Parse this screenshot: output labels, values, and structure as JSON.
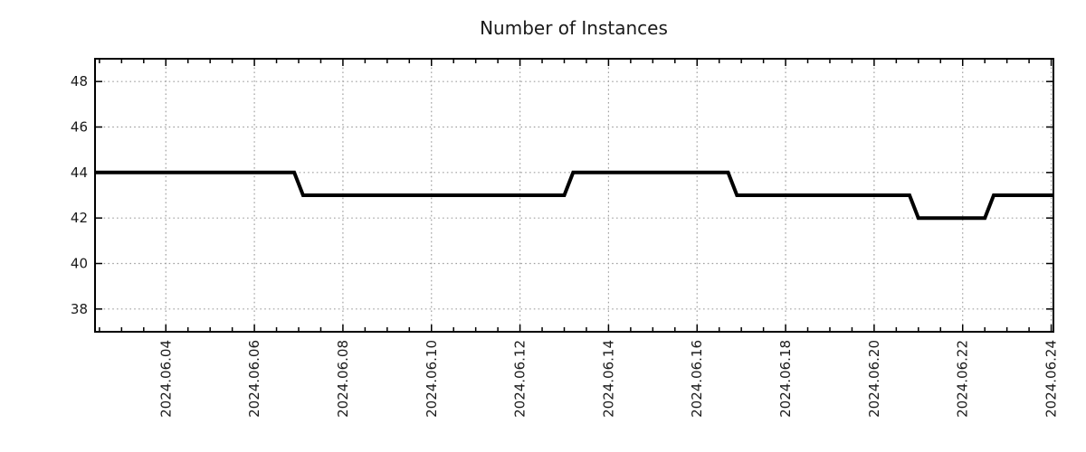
{
  "colors": {
    "background": "#ffffff",
    "line": "#000000",
    "grid": "#a0a0a0",
    "border": "#000000",
    "text": "#1a1a1a"
  },
  "chart_data": {
    "type": "line",
    "title": "Number of Instances",
    "xlabel": "",
    "ylabel": "",
    "grid": "dotted gridlines at major ticks",
    "legend": false,
    "line_style": "thick black step line, no markers",
    "x_axis": {
      "unit": "date",
      "lim_days": [
        2.4,
        24.05
      ],
      "minor_tick_step_days": 0.5,
      "major_ticks": [
        {
          "day": 4,
          "label": "2024.06.04"
        },
        {
          "day": 6,
          "label": "2024.06.06"
        },
        {
          "day": 8,
          "label": "2024.06.08"
        },
        {
          "day": 10,
          "label": "2024.06.10"
        },
        {
          "day": 12,
          "label": "2024.06.12"
        },
        {
          "day": 14,
          "label": "2024.06.14"
        },
        {
          "day": 16,
          "label": "2024.06.16"
        },
        {
          "day": 18,
          "label": "2024.06.18"
        },
        {
          "day": 20,
          "label": "2024.06.20"
        },
        {
          "day": 22,
          "label": "2024.06.22"
        },
        {
          "day": 24,
          "label": "2024.06.24"
        }
      ],
      "tick_label_rotation_deg": -90
    },
    "y_axis": {
      "lim": [
        37,
        49
      ],
      "major_ticks": [
        38,
        40,
        42,
        44,
        46,
        48
      ]
    },
    "series": [
      {
        "name": "Number of Instances",
        "color": "#000000",
        "step_summary": "44 until Jun 7, 43 until Jun 13, 44 until Jun 17, 43 until Jun 21, 42 until Jun 22.6, then 43",
        "points": [
          [
            2.4,
            44
          ],
          [
            6.9,
            44
          ],
          [
            7.1,
            43
          ],
          [
            13.0,
            43
          ],
          [
            13.2,
            44
          ],
          [
            16.7,
            44
          ],
          [
            16.9,
            43
          ],
          [
            20.8,
            43
          ],
          [
            21.0,
            42
          ],
          [
            22.5,
            42
          ],
          [
            22.7,
            43
          ],
          [
            24.05,
            43
          ]
        ]
      }
    ]
  }
}
